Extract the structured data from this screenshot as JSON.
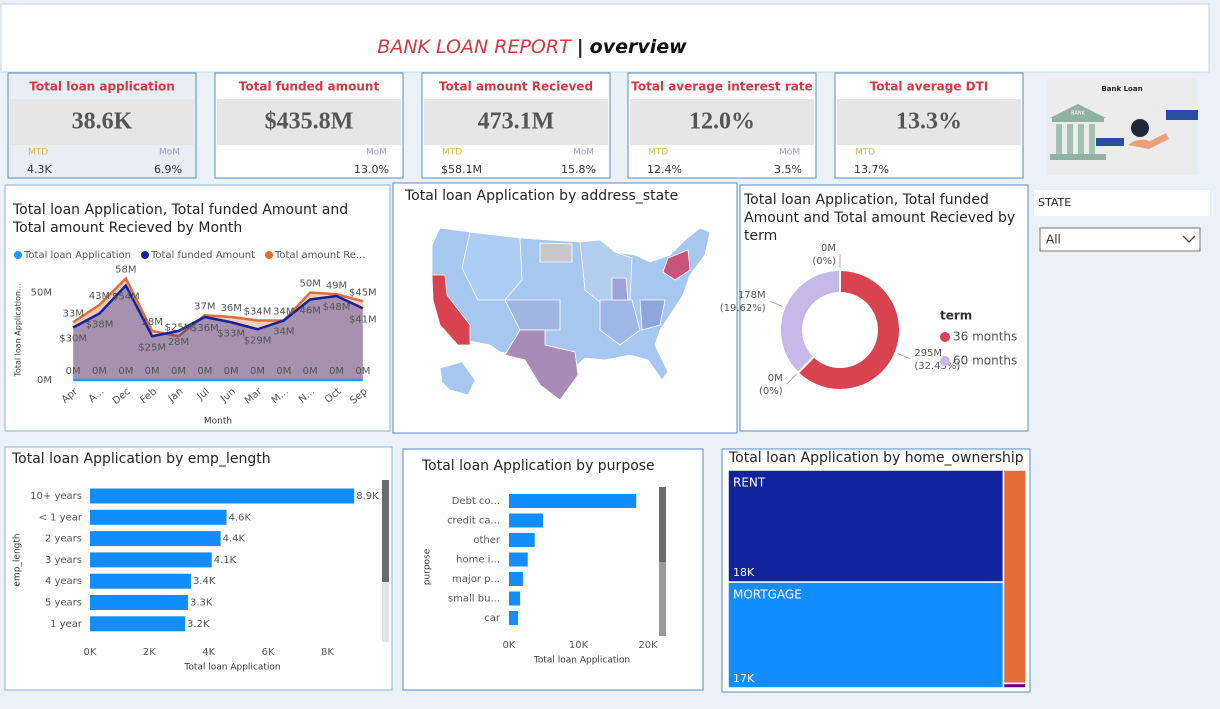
{
  "header": {
    "title": "BANK LOAN REPORT",
    "separator": "|",
    "subtitle": "overview"
  },
  "kpis": [
    {
      "title": "Total loan application",
      "value": "38.6K",
      "mtd": {
        "label": "MTD",
        "value": "4.3K"
      },
      "mom": {
        "label": "MoM",
        "value": "6.9%"
      }
    },
    {
      "title": "Total funded amount",
      "value": "$435.8M",
      "mom": {
        "label": "MoM",
        "value": "13.0%"
      }
    },
    {
      "title": "Total amount Recieved",
      "value": "473.1M",
      "mtd": {
        "label": "MTD",
        "value": "$58.1M"
      },
      "mom": {
        "label": "MoM",
        "value": "15.8%"
      }
    },
    {
      "title": "Total average interest rate",
      "value": "12.0%",
      "mtd": {
        "label": "MTD",
        "value": "12.4%"
      },
      "mom": {
        "label": "MoM",
        "value": "3.5%"
      }
    },
    {
      "title": "Total average DTI",
      "value": "13.3%",
      "mtd": {
        "label": "MTD",
        "value": "13.7%"
      }
    }
  ],
  "logo": {
    "title": "Bank Loan",
    "sign": "BANK"
  },
  "filter": {
    "label": "STATE",
    "value": "All"
  },
  "chart_data": [
    {
      "type": "area",
      "title": "Total loan Application, Total funded Amount and Total amount Recieved by Month",
      "xlabel": "Month",
      "ylabel": "Total loan Application...",
      "categories": [
        "Apr",
        "A...",
        "Dec",
        "Feb",
        "Jan",
        "Jul",
        "Jun",
        "Mar",
        "M...",
        "N...",
        "Oct",
        "Sep"
      ],
      "ylim": [
        0,
        60
      ],
      "yticks": [
        {
          "value": 0,
          "label": "0M"
        },
        {
          "value": 50,
          "label": "50M"
        }
      ],
      "series": [
        {
          "name": "Total loan Application",
          "color": "#1a9cff",
          "values": [
            0.0035,
            0.004,
            0.0043,
            0.0032,
            0.003,
            0.0033,
            0.0035,
            0.003,
            0.0031,
            0.0042,
            0.0041,
            0.0039
          ],
          "value_labels": [
            "0M",
            "0M",
            "0M",
            "0M",
            "0M",
            "0M",
            "0M",
            "0M",
            "0M",
            "0M",
            "0M",
            "0M"
          ]
        },
        {
          "name": "Total funded Amount",
          "color": "#12239e",
          "values": [
            30,
            38,
            54,
            25,
            28,
            36,
            33,
            29,
            34,
            46,
            48,
            41
          ],
          "value_labels": [
            "$30M",
            "$38M",
            "$54M",
            "$25M",
            "28M",
            "$36M",
            "$33M",
            "$29M",
            "34M",
            "46M",
            "$48M",
            "$41M"
          ]
        },
        {
          "name": "Total amount Re...",
          "color": "#e66c37",
          "values": [
            33,
            43,
            58,
            28,
            25,
            37,
            36,
            34,
            34,
            50,
            49,
            45
          ],
          "value_labels": [
            "33M",
            "43M",
            "58M",
            "28M",
            "$25M",
            "37M",
            "36M",
            "$34M",
            "34M",
            "50M",
            "49M",
            "$45M"
          ]
        }
      ]
    },
    {
      "type": "map",
      "title": "Total loan Application by address_state"
    },
    {
      "type": "donut",
      "title": "Total loan Application, Total funded Amount and Total amount Recieved by term",
      "legend_title": "term",
      "series": [
        {
          "name": "36 months",
          "color": "#d9434f"
        },
        {
          "name": "60 months",
          "color": "#c7b8ea"
        }
      ],
      "slices": [
        {
          "series": 0,
          "value": 295,
          "label": "295M",
          "percent": 32.43,
          "percent_label": "(32.43%)"
        },
        {
          "series": 1,
          "value": 0,
          "label": "0M",
          "percent": 0,
          "percent_label": "(0%)"
        },
        {
          "series": 1,
          "value": 178,
          "label": "178M",
          "percent": 19.62,
          "percent_label": "(19.62%)"
        },
        {
          "series": 0,
          "value": 0,
          "label": "0M",
          "percent": 0,
          "percent_label": "(0%)"
        }
      ]
    },
    {
      "type": "hbar",
      "title": "Total loan Application by emp_length",
      "xlabel": "Total loan Application",
      "ylabel": "emp_length",
      "color": "#118dff",
      "categories": [
        "10+ years",
        "< 1 year",
        "2 years",
        "3 years",
        "4 years",
        "5 years",
        "1 year"
      ],
      "values": [
        8.9,
        4.6,
        4.4,
        4.1,
        3.4,
        3.3,
        3.2
      ],
      "value_labels": [
        "8.9K",
        "4.6K",
        "4.4K",
        "4.1K",
        "3.4K",
        "3.3K",
        "3.2K"
      ],
      "xlim": [
        0,
        9.6
      ],
      "xticks": [
        {
          "value": 0,
          "label": "0K"
        },
        {
          "value": 2,
          "label": "2K"
        },
        {
          "value": 4,
          "label": "4K"
        },
        {
          "value": 6,
          "label": "6K"
        },
        {
          "value": 8,
          "label": "8K"
        }
      ]
    },
    {
      "type": "hbar",
      "title": "Total loan Application by purpose",
      "xlabel": "Total loan Application",
      "ylabel": "purpose",
      "color": "#118dff",
      "categories": [
        "Debt co...",
        "credit ca...",
        "other",
        "home i...",
        "major p...",
        "small bu...",
        "car"
      ],
      "values": [
        18.3,
        4.9,
        3.7,
        2.7,
        2.0,
        1.6,
        1.3
      ],
      "xlim": [
        0,
        21
      ],
      "xticks": [
        {
          "value": 0,
          "label": "0K"
        },
        {
          "value": 10,
          "label": "10K"
        },
        {
          "value": 20,
          "label": "20K"
        }
      ]
    },
    {
      "type": "treemap",
      "title": "Total loan Application by home_ownership",
      "categories": [
        "RENT",
        "MORTGAGE",
        null,
        null
      ],
      "values": [
        18,
        17,
        2.8,
        0.06
      ],
      "value_labels": [
        "18K",
        "17K",
        null,
        null
      ],
      "colors": [
        "#12239e",
        "#118dff",
        "#e66c37",
        "#6b007b"
      ]
    }
  ]
}
